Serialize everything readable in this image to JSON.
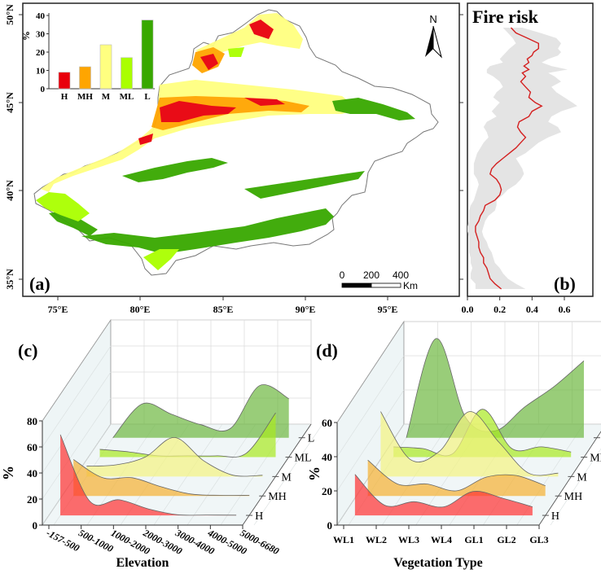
{
  "chart_data": [
    {
      "panel": "(a)",
      "type": "bar",
      "subtype": "map-with-inset-bar",
      "map": {
        "lon_ticks": [
          "75°E",
          "80°E",
          "85°E",
          "90°E",
          "95°E"
        ],
        "lat_ticks": [
          "35°N",
          "40°N",
          "45°N",
          "50°N"
        ],
        "scale_bar": {
          "ticks": [
            "0",
            "200",
            "400"
          ],
          "unit": "Km"
        },
        "north_arrow": "N",
        "class_colors": {
          "H": "#e8000b",
          "MH": "#ffa500",
          "M": "#ffff80",
          "ML": "#aaff00",
          "L": "#38a800"
        }
      },
      "inset": {
        "ylabel": "%",
        "ylim": [
          0,
          40
        ],
        "yticks": [
          "0",
          "10",
          "20",
          "30",
          "40"
        ],
        "categories": [
          "H",
          "MH",
          "M",
          "ML",
          "L"
        ],
        "values": [
          9,
          12,
          24,
          17,
          37.5
        ],
        "colors": [
          "#e8000b",
          "#ffa500",
          "#ffff80",
          "#aaff00",
          "#38a800"
        ]
      }
    },
    {
      "panel": "(b)",
      "type": "line",
      "title": "Fire risk",
      "xlim": [
        0,
        0.7
      ],
      "xticks": [
        "0.0",
        "0.2",
        "0.4",
        "0.6"
      ],
      "ylim_lat": [
        34.2,
        49.8
      ],
      "series": [
        {
          "name": "mean",
          "color": "#d42020",
          "lat": [
            49.6,
            49.3,
            49.0,
            48.7,
            48.4,
            48.2,
            48.0,
            47.8,
            47.6,
            47.4,
            47.2,
            47.0,
            46.8,
            46.5,
            46.2,
            45.9,
            45.6,
            45.3,
            45.1,
            44.8,
            44.5,
            44.2,
            43.9,
            43.6,
            43.3,
            43.0,
            42.7,
            42.4,
            42.1,
            41.8,
            41.5,
            41.2,
            40.9,
            40.6,
            40.3,
            40.0,
            39.7,
            39.4,
            39.1,
            38.8,
            38.5,
            38.2,
            37.9,
            37.6,
            37.3,
            37.0,
            36.7,
            36.4,
            36.1,
            35.8,
            35.5,
            35.2,
            34.9,
            34.6
          ],
          "value": [
            0.27,
            0.3,
            0.37,
            0.44,
            0.44,
            0.41,
            0.4,
            0.37,
            0.38,
            0.35,
            0.38,
            0.34,
            0.36,
            0.33,
            0.36,
            0.39,
            0.38,
            0.42,
            0.46,
            0.4,
            0.38,
            0.32,
            0.31,
            0.33,
            0.36,
            0.33,
            0.3,
            0.26,
            0.22,
            0.18,
            0.15,
            0.14,
            0.18,
            0.2,
            0.21,
            0.2,
            0.17,
            0.11,
            0.1,
            0.08,
            0.07,
            0.05,
            0.05,
            0.06,
            0.07,
            0.07,
            0.08,
            0.1,
            0.1,
            0.12,
            0.13,
            0.14,
            0.17,
            0.21
          ]
        },
        {
          "name": "range-lower",
          "color": "#e4e4e4",
          "value": [
            0.22,
            0.25,
            0.28,
            0.3,
            0.26,
            0.24,
            0.22,
            0.2,
            0.22,
            0.14,
            0.12,
            0.12,
            0.16,
            0.2,
            0.22,
            0.18,
            0.16,
            0.2,
            0.18,
            0.15,
            0.18,
            0.12,
            0.1,
            0.12,
            0.13,
            0.1,
            0.08,
            0.06,
            0.05,
            0.04,
            0.04,
            0.04,
            0.06,
            0.07,
            0.06,
            0.05,
            0.04,
            0.02,
            0.01,
            0.01,
            0.01,
            0.0,
            0.0,
            0.01,
            0.01,
            0.01,
            0.01,
            0.02,
            0.02,
            0.03,
            0.02,
            0.02,
            0.05,
            0.05
          ]
        },
        {
          "name": "range-upper",
          "color": "#e4e4e4",
          "value": [
            0.34,
            0.45,
            0.55,
            0.58,
            0.56,
            0.58,
            0.56,
            0.5,
            0.46,
            0.52,
            0.62,
            0.5,
            0.54,
            0.58,
            0.52,
            0.55,
            0.6,
            0.65,
            0.68,
            0.58,
            0.52,
            0.5,
            0.56,
            0.58,
            0.5,
            0.44,
            0.4,
            0.36,
            0.3,
            0.32,
            0.34,
            0.35,
            0.33,
            0.3,
            0.25,
            0.22,
            0.18,
            0.18,
            0.17,
            0.13,
            0.11,
            0.1,
            0.09,
            0.1,
            0.12,
            0.13,
            0.15,
            0.16,
            0.17,
            0.2,
            0.22,
            0.25,
            0.3,
            0.36
          ]
        }
      ]
    },
    {
      "panel": "(c)",
      "type": "area",
      "subtype": "3d-ridgeline",
      "xlabel": "Elevation",
      "ylabel": "%",
      "ylim": [
        0,
        80
      ],
      "yticks": [
        "0",
        "20",
        "40",
        "60",
        "80"
      ],
      "categories": [
        "-157-500",
        "500-1000",
        "1000-2000",
        "2000-3000",
        "3000-4000",
        "4000-5000",
        "5000-6680"
      ],
      "series": [
        {
          "name": "H",
          "color": "#ff3030",
          "values": [
            62,
            11,
            12,
            5,
            0.5,
            0.3,
            0.2
          ]
        },
        {
          "name": "MH",
          "color": "#f5b030",
          "values": [
            28,
            14,
            14,
            7,
            1.5,
            0.5,
            0.5
          ]
        },
        {
          "name": "M",
          "color": "#f3f380",
          "values": [
            8,
            9,
            15,
            30,
            12,
            1,
            1
          ]
        },
        {
          "name": "ML",
          "color": "#a8ea20",
          "values": [
            6,
            4,
            1,
            1,
            1,
            3,
            34
          ]
        },
        {
          "name": "L",
          "color": "#6db840",
          "values": [
            0,
            26,
            18,
            10,
            7,
            40,
            30
          ]
        }
      ]
    },
    {
      "panel": "(d)",
      "type": "area",
      "subtype": "3d-ridgeline",
      "xlabel": "Vegetation Type",
      "ylabel": "%",
      "ylim": [
        0,
        60
      ],
      "yticks": [
        "0",
        "20",
        "40",
        "60"
      ],
      "categories": [
        "WL1",
        "WL2",
        "WL3",
        "WL4",
        "GL1",
        "GL2",
        "GL3"
      ],
      "series": [
        {
          "name": "H",
          "color": "#ff3030",
          "values": [
            24,
            6,
            8,
            5,
            14,
            10,
            5
          ]
        },
        {
          "name": "MH",
          "color": "#f5b030",
          "values": [
            21,
            7,
            7,
            3,
            11,
            12,
            6
          ]
        },
        {
          "name": "M",
          "color": "#f3f380",
          "values": [
            38,
            10,
            15,
            38,
            20,
            2,
            2
          ]
        },
        {
          "name": "ML",
          "color": "#a8ea20",
          "values": [
            6,
            5,
            2,
            28,
            5,
            6,
            3
          ]
        },
        {
          "name": "L",
          "color": "#6db840",
          "values": [
            0,
            58,
            12,
            4,
            18,
            30,
            45
          ]
        }
      ]
    }
  ]
}
